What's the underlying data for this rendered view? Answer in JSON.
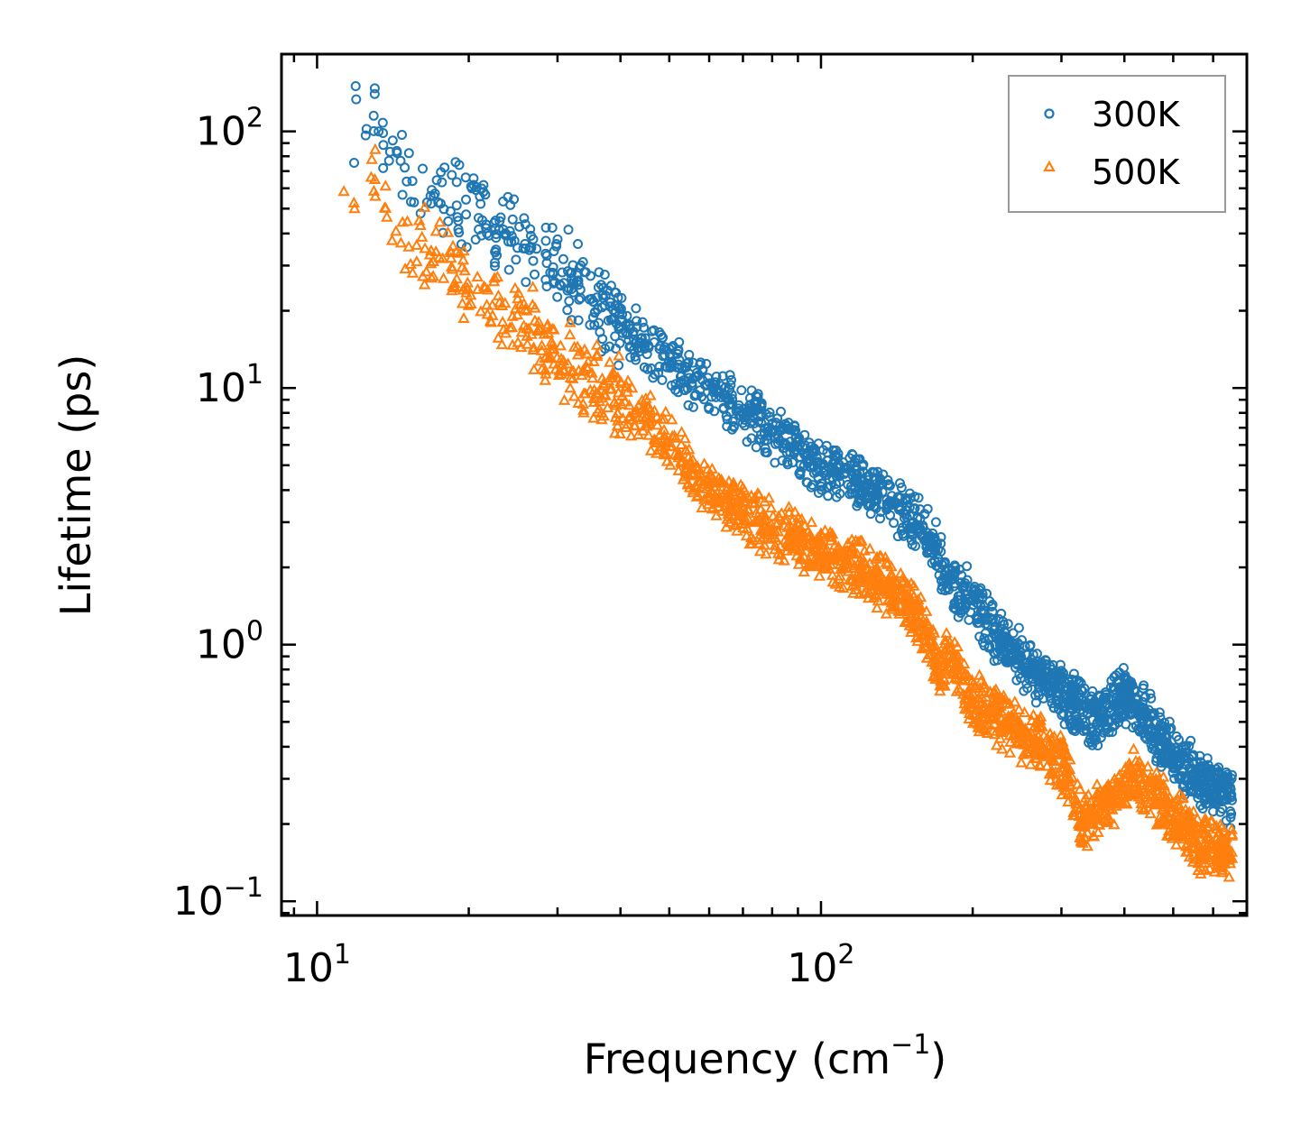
{
  "chart_data": {
    "type": "scatter",
    "title": "",
    "xlabel": "Frequency (cm",
    "xlabel_sup": "−1",
    "xlabel_close": ")",
    "ylabel": "Lifetime (ps)",
    "xscale": "log",
    "yscale": "log",
    "xlim": [
      8.5,
      700
    ],
    "ylim": [
      0.088,
      200
    ],
    "x_tick_labels": [
      {
        "value": 10,
        "base": "10",
        "exp": "1"
      },
      {
        "value": 100,
        "base": "10",
        "exp": "2"
      }
    ],
    "y_tick_labels": [
      {
        "value": 0.1,
        "base": "10",
        "exp": "−1"
      },
      {
        "value": 1,
        "base": "10",
        "exp": "0"
      },
      {
        "value": 10,
        "base": "10",
        "exp": "1"
      },
      {
        "value": 100,
        "base": "10",
        "exp": "2"
      }
    ],
    "legend_position": "top-right",
    "series": [
      {
        "name": "300K",
        "marker": "circle",
        "color": "#1f77b4",
        "trend": [
          [
            11,
            110
          ],
          [
            13,
            120
          ],
          [
            15,
            70
          ],
          [
            20,
            50
          ],
          [
            25,
            38
          ],
          [
            30,
            32
          ],
          [
            35,
            22
          ],
          [
            40,
            18
          ],
          [
            45,
            14
          ],
          [
            50,
            12.5
          ],
          [
            60,
            10
          ],
          [
            70,
            8
          ],
          [
            80,
            6.8
          ],
          [
            90,
            5.5
          ],
          [
            100,
            5
          ],
          [
            120,
            4.3
          ],
          [
            140,
            3.5
          ],
          [
            160,
            2.8
          ],
          [
            180,
            1.8
          ],
          [
            200,
            1.5
          ],
          [
            220,
            1.1
          ],
          [
            240,
            0.95
          ],
          [
            260,
            0.8
          ],
          [
            300,
            0.65
          ],
          [
            350,
            0.5
          ],
          [
            400,
            0.65
          ],
          [
            450,
            0.5
          ],
          [
            500,
            0.37
          ],
          [
            600,
            0.27
          ],
          [
            650,
            0.25
          ]
        ],
        "x_range": [
          11,
          655
        ],
        "count": 1800
      },
      {
        "name": "500K",
        "marker": "triangle",
        "color": "#ff7f0e",
        "trend": [
          [
            11,
            65
          ],
          [
            13,
            60
          ],
          [
            15,
            40
          ],
          [
            20,
            25
          ],
          [
            25,
            18
          ],
          [
            30,
            13
          ],
          [
            35,
            10.5
          ],
          [
            40,
            9
          ],
          [
            45,
            7.5
          ],
          [
            50,
            6
          ],
          [
            60,
            4
          ],
          [
            70,
            3.3
          ],
          [
            80,
            2.8
          ],
          [
            90,
            2.5
          ],
          [
            100,
            2.2
          ],
          [
            120,
            2
          ],
          [
            140,
            1.6
          ],
          [
            160,
            1.2
          ],
          [
            170,
            0.8
          ],
          [
            180,
            0.9
          ],
          [
            200,
            0.6
          ],
          [
            220,
            0.55
          ],
          [
            250,
            0.45
          ],
          [
            300,
            0.35
          ],
          [
            330,
            0.2
          ],
          [
            380,
            0.25
          ],
          [
            420,
            0.3
          ],
          [
            500,
            0.22
          ],
          [
            560,
            0.17
          ],
          [
            650,
            0.15
          ]
        ],
        "x_range": [
          11,
          655
        ],
        "count": 1800
      }
    ]
  }
}
